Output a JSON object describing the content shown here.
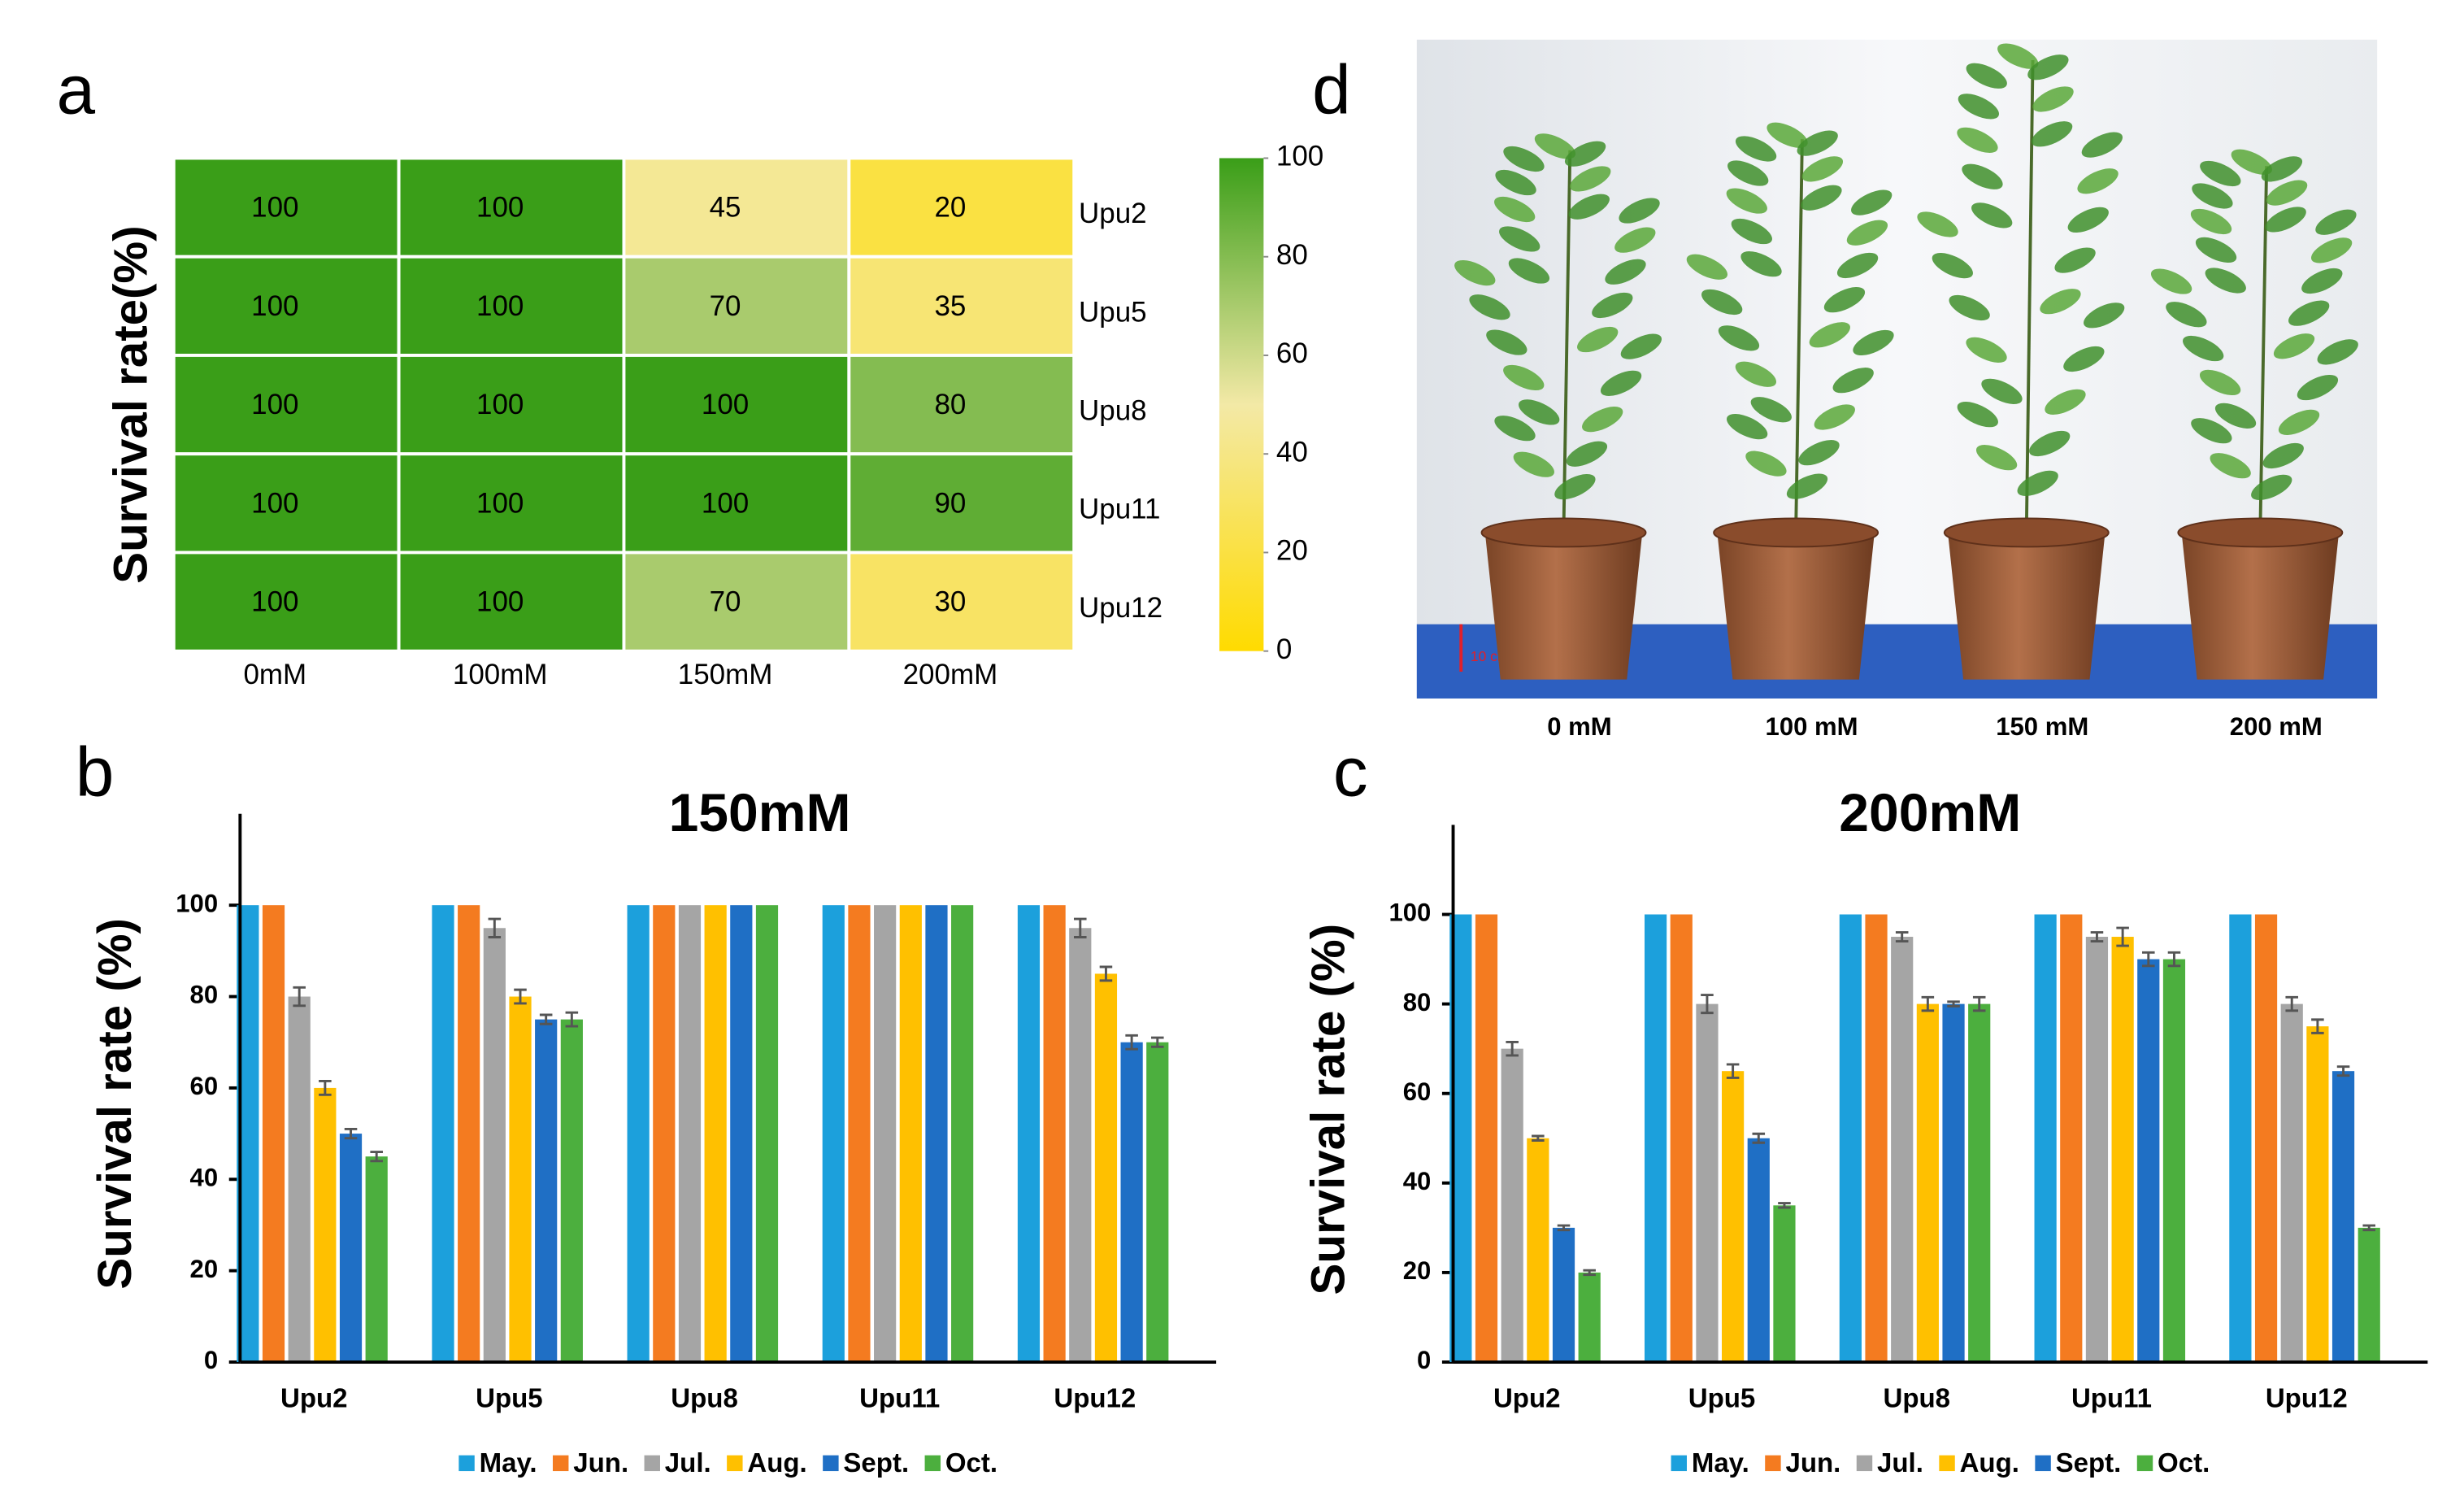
{
  "chart_data": [
    {
      "type": "heatmap",
      "label": "a",
      "ylabel": "Survival rate(%)",
      "columns": [
        "0mM",
        "100mM",
        "150mM",
        "200mM"
      ],
      "rows": [
        "Upu2",
        "Upu5",
        "Upu8",
        "Upu11",
        "Upu12"
      ],
      "values": [
        [
          100,
          100,
          45,
          20
        ],
        [
          100,
          100,
          70,
          35
        ],
        [
          100,
          100,
          100,
          80
        ],
        [
          100,
          100,
          100,
          90
        ],
        [
          100,
          100,
          70,
          30
        ]
      ],
      "colorscale": [
        "#ffdb00",
        "#f3e9a6",
        "#3a9e18"
      ],
      "clim": [
        0,
        100
      ],
      "cticks": [
        0,
        20,
        40,
        60,
        80,
        100
      ]
    },
    {
      "type": "bar",
      "label": "b",
      "title": "150mM",
      "ylabel": "Survival rate (%)",
      "categories": [
        "Upu2",
        "Upu5",
        "Upu8",
        "Upu11",
        "Upu12"
      ],
      "series": [
        {
          "name": "May.",
          "color": "#1ca0dc",
          "values": [
            100,
            100,
            100,
            100,
            100
          ],
          "errors": [
            0,
            0,
            0,
            0,
            0
          ]
        },
        {
          "name": "Jun.",
          "color": "#f47b20",
          "values": [
            100,
            100,
            100,
            100,
            100
          ],
          "errors": [
            0,
            0,
            0,
            0,
            0
          ]
        },
        {
          "name": "Jul.",
          "color": "#a5a5a5",
          "values": [
            80,
            95,
            100,
            100,
            95
          ],
          "errors": [
            2,
            2,
            0,
            0,
            2
          ]
        },
        {
          "name": "Aug.",
          "color": "#ffc000",
          "values": [
            60,
            80,
            100,
            100,
            85
          ],
          "errors": [
            1.5,
            1.5,
            0,
            0,
            1.5
          ]
        },
        {
          "name": "Sept.",
          "color": "#1f6fc5",
          "values": [
            50,
            75,
            100,
            100,
            70
          ],
          "errors": [
            1,
            1,
            0,
            0,
            1.5
          ]
        },
        {
          "name": "Oct.",
          "color": "#4caf3e",
          "values": [
            45,
            75,
            100,
            100,
            70
          ],
          "errors": [
            1,
            1.5,
            0,
            0,
            1
          ]
        }
      ],
      "ylim": [
        0,
        120
      ],
      "yticks": [
        0,
        20,
        40,
        60,
        80,
        100
      ]
    },
    {
      "type": "bar",
      "label": "c",
      "title": "200mM",
      "ylabel": "Survival rate (%)",
      "categories": [
        "Upu2",
        "Upu5",
        "Upu8",
        "Upu11",
        "Upu12"
      ],
      "series": [
        {
          "name": "May.",
          "color": "#1ca0dc",
          "values": [
            100,
            100,
            100,
            100,
            100
          ],
          "errors": [
            0,
            0,
            0,
            0,
            0
          ]
        },
        {
          "name": "Jun.",
          "color": "#f47b20",
          "values": [
            100,
            100,
            100,
            100,
            100
          ],
          "errors": [
            0,
            0,
            0,
            0,
            0
          ]
        },
        {
          "name": "Jul.",
          "color": "#a5a5a5",
          "values": [
            70,
            80,
            95,
            95,
            80
          ],
          "errors": [
            1.5,
            2,
            1,
            1,
            1.5
          ]
        },
        {
          "name": "Aug.",
          "color": "#ffc000",
          "values": [
            50,
            65,
            80,
            95,
            75
          ],
          "errors": [
            0.5,
            1.5,
            1.5,
            2,
            1.5
          ]
        },
        {
          "name": "Sept.",
          "color": "#1f6fc5",
          "values": [
            30,
            50,
            80,
            90,
            65
          ],
          "errors": [
            0.5,
            1,
            0.5,
            1.5,
            1
          ]
        },
        {
          "name": "Oct.",
          "color": "#4caf3e",
          "values": [
            20,
            35,
            80,
            90,
            30
          ],
          "errors": [
            0.5,
            0.5,
            1.5,
            1.5,
            0.5
          ]
        }
      ],
      "ylim": [
        0,
        120
      ],
      "yticks": [
        0,
        20,
        40,
        60,
        80,
        100
      ]
    }
  ],
  "photo": {
    "label": "d",
    "scale_label": "10 cm",
    "labels": [
      "0 mM",
      "100 mM",
      "150 mM",
      "200 mM"
    ]
  }
}
